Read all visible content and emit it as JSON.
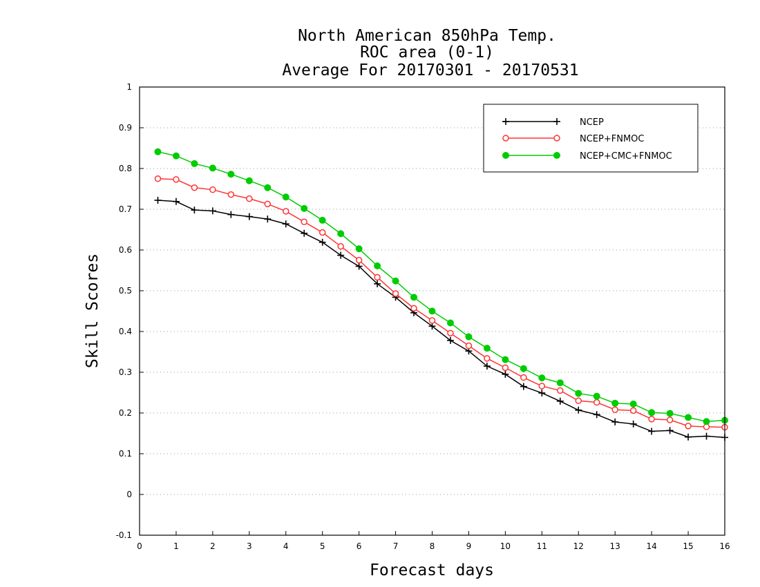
{
  "chart_data": {
    "type": "line",
    "title": [
      "North American 850hPa Temp.",
      "ROC area (0-1)",
      "Average For 20170301 - 20170531"
    ],
    "xlabel": "Forecast days",
    "ylabel": "Skill Scores",
    "xlim": [
      0,
      16
    ],
    "ylim": [
      -0.1,
      1
    ],
    "x_ticks": [
      "0",
      "1",
      "2",
      "3",
      "4",
      "5",
      "6",
      "7",
      "8",
      "9",
      "10",
      "11",
      "12",
      "13",
      "14",
      "15",
      "16"
    ],
    "y_ticks": [
      "-0.1",
      "0",
      "0.1",
      "0.2",
      "0.3",
      "0.4",
      "0.5",
      "0.6",
      "0.7",
      "0.8",
      "0.9",
      "1"
    ],
    "grid": "horizontal dotted",
    "legend_position": "top-right",
    "x": [
      0.5,
      1,
      1.5,
      2,
      2.5,
      3,
      3.5,
      4,
      4.5,
      5,
      5.5,
      6,
      6.5,
      7,
      7.5,
      8,
      8.5,
      9,
      9.5,
      10,
      10.5,
      11,
      11.5,
      12,
      12.5,
      13,
      13.5,
      14,
      14.5,
      15,
      15.5,
      16
    ],
    "series": [
      {
        "name": "NCEP",
        "color": "#000000",
        "marker": "plus",
        "values": [
          0.722,
          0.719,
          0.698,
          0.696,
          0.687,
          0.682,
          0.676,
          0.664,
          0.641,
          0.619,
          0.587,
          0.56,
          0.517,
          0.484,
          0.446,
          0.413,
          0.378,
          0.352,
          0.315,
          0.295,
          0.265,
          0.249,
          0.229,
          0.207,
          0.196,
          0.178,
          0.173,
          0.155,
          0.157,
          0.141,
          0.143,
          0.14
        ]
      },
      {
        "name": "NCEP+FNMOC",
        "color": "#ff3333",
        "marker": "open-circle",
        "values": [
          0.775,
          0.773,
          0.753,
          0.748,
          0.736,
          0.726,
          0.713,
          0.695,
          0.669,
          0.643,
          0.609,
          0.575,
          0.533,
          0.493,
          0.457,
          0.427,
          0.396,
          0.365,
          0.334,
          0.311,
          0.287,
          0.266,
          0.255,
          0.23,
          0.226,
          0.208,
          0.206,
          0.185,
          0.183,
          0.168,
          0.166,
          0.165
        ]
      },
      {
        "name": "NCEP+CMC+FNMOC",
        "color": "#00cc00",
        "marker": "filled-circle",
        "values": [
          0.841,
          0.831,
          0.812,
          0.801,
          0.786,
          0.77,
          0.753,
          0.73,
          0.702,
          0.673,
          0.64,
          0.603,
          0.561,
          0.524,
          0.484,
          0.45,
          0.421,
          0.387,
          0.359,
          0.331,
          0.309,
          0.286,
          0.274,
          0.248,
          0.241,
          0.224,
          0.222,
          0.201,
          0.199,
          0.189,
          0.179,
          0.182
        ]
      }
    ]
  }
}
